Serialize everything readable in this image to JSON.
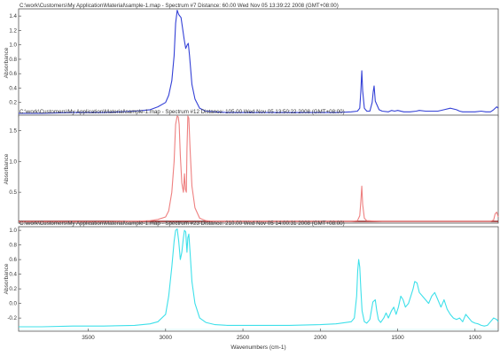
{
  "chart_data": [
    {
      "type": "line",
      "title": "C:\\work\\Customers\\My Application\\Material\\sample-1.map - Spectrum #7   Distance: 60.00   Wed Nov 05 13:39:22 2008 (GMT+08:00)",
      "ylabel": "Absorbance",
      "ylim": [
        0.0,
        1.5
      ],
      "yticks": [
        0.2,
        0.4,
        0.6,
        0.8,
        1.0,
        1.2,
        1.4
      ],
      "yticklabels": [
        "0.2",
        "0.4",
        "0.6",
        "0.8",
        "1.0",
        "1.2",
        "1.4"
      ],
      "color": "#3340d6",
      "baseline_color": "#3340d6",
      "x": [
        3950,
        3800,
        3600,
        3400,
        3200,
        3100,
        3050,
        3000,
        2980,
        2960,
        2945,
        2935,
        2925,
        2915,
        2900,
        2880,
        2870,
        2860,
        2853,
        2845,
        2830,
        2810,
        2780,
        2740,
        2680,
        2600,
        2400,
        2200,
        2000,
        1900,
        1800,
        1760,
        1745,
        1738,
        1732,
        1726,
        1715,
        1700,
        1680,
        1665,
        1658,
        1652,
        1645,
        1620,
        1600,
        1560,
        1540,
        1520,
        1500,
        1460,
        1420,
        1380,
        1360,
        1320,
        1280,
        1240,
        1200,
        1160,
        1120,
        1100,
        1080,
        1060,
        1040,
        1000,
        960,
        930,
        900,
        880,
        860,
        850
      ],
      "y": [
        0.05,
        0.05,
        0.06,
        0.06,
        0.08,
        0.1,
        0.14,
        0.2,
        0.3,
        0.5,
        0.85,
        1.3,
        1.48,
        1.42,
        1.38,
        1.08,
        0.95,
        1.0,
        1.02,
        0.85,
        0.45,
        0.25,
        0.12,
        0.08,
        0.07,
        0.06,
        0.06,
        0.06,
        0.06,
        0.06,
        0.07,
        0.08,
        0.12,
        0.35,
        0.64,
        0.36,
        0.12,
        0.08,
        0.08,
        0.2,
        0.35,
        0.43,
        0.22,
        0.1,
        0.08,
        0.07,
        0.09,
        0.08,
        0.09,
        0.07,
        0.07,
        0.08,
        0.09,
        0.08,
        0.08,
        0.08,
        0.1,
        0.12,
        0.1,
        0.08,
        0.07,
        0.07,
        0.07,
        0.07,
        0.08,
        0.07,
        0.07,
        0.1,
        0.14,
        0.12
      ]
    },
    {
      "type": "line",
      "title": "C:\\work\\Customers\\My Application\\Material\\sample-1.map - Spectrum #12   Distance: 105.00   Wed Nov 05 13:50:22 2008 (GMT+08:00)",
      "ylabel": "Absorbance",
      "ylim": [
        0.0,
        1.75
      ],
      "yticks": [
        0.5,
        1.0,
        1.5
      ],
      "yticklabels": [
        "0.5",
        "1.0",
        "1.5"
      ],
      "color": "#ee8080",
      "baseline_color": "#8a1010",
      "x": [
        3950,
        3800,
        3600,
        3400,
        3200,
        3100,
        3050,
        3000,
        2980,
        2960,
        2945,
        2935,
        2925,
        2918,
        2912,
        2905,
        2895,
        2885,
        2878,
        2872,
        2866,
        2862,
        2856,
        2850,
        2842,
        2830,
        2810,
        2780,
        2740,
        2680,
        2600,
        2400,
        2200,
        2000,
        1900,
        1800,
        1760,
        1745,
        1738,
        1732,
        1726,
        1715,
        1700,
        1600,
        1500,
        1400,
        1300,
        1200,
        1100,
        1000,
        950,
        900,
        880,
        870,
        860,
        850
      ],
      "y": [
        0.02,
        0.02,
        0.02,
        0.02,
        0.03,
        0.04,
        0.06,
        0.1,
        0.2,
        0.5,
        1.0,
        1.6,
        1.75,
        1.72,
        1.6,
        1.1,
        0.65,
        0.5,
        0.8,
        0.55,
        0.5,
        1.2,
        1.75,
        1.7,
        1.2,
        0.6,
        0.25,
        0.08,
        0.04,
        0.03,
        0.03,
        0.03,
        0.03,
        0.03,
        0.03,
        0.03,
        0.04,
        0.12,
        0.35,
        0.6,
        0.3,
        0.08,
        0.04,
        0.03,
        0.03,
        0.03,
        0.03,
        0.03,
        0.03,
        0.03,
        0.03,
        0.03,
        0.05,
        0.15,
        0.18,
        0.1
      ]
    },
    {
      "type": "line",
      "title": "C:\\work\\Customers\\My Application\\Material\\sample-1.map - Spectrum #23   Distance: 210.00   Wed Nov 05 14:00:31 2008 (GMT+08:00)",
      "ylabel": "Absorbance",
      "xlabel": "Wavenumbers (cm-1)",
      "ylim": [
        -0.38,
        1.05
      ],
      "yticks": [
        -0.2,
        0.0,
        0.2,
        0.4,
        0.6,
        0.8,
        1.0
      ],
      "yticklabels": [
        "-0.2",
        "0.0",
        "0.2",
        "0.4",
        "0.6",
        "0.8",
        "1.0"
      ],
      "xlim": [
        3950,
        850
      ],
      "xticks": [
        3500,
        3000,
        2500,
        2000,
        1500,
        1000
      ],
      "xticklabels": [
        "3500",
        "3000",
        "2500",
        "2000",
        "1500",
        "1000"
      ],
      "color": "#3ee0ea",
      "baseline_color": "#3ee0ea",
      "x": [
        3950,
        3800,
        3600,
        3400,
        3200,
        3100,
        3050,
        3000,
        2980,
        2960,
        2945,
        2935,
        2925,
        2915,
        2905,
        2895,
        2885,
        2878,
        2870,
        2862,
        2856,
        2850,
        2842,
        2830,
        2810,
        2780,
        2740,
        2680,
        2600,
        2400,
        2200,
        2000,
        1900,
        1800,
        1780,
        1765,
        1758,
        1752,
        1745,
        1738,
        1730,
        1715,
        1700,
        1680,
        1660,
        1645,
        1635,
        1625,
        1610,
        1590,
        1575,
        1560,
        1540,
        1525,
        1510,
        1495,
        1480,
        1465,
        1450,
        1430,
        1415,
        1400,
        1390,
        1375,
        1360,
        1340,
        1320,
        1300,
        1280,
        1260,
        1240,
        1220,
        1200,
        1180,
        1160,
        1140,
        1120,
        1100,
        1080,
        1060,
        1040,
        1020,
        1000,
        980,
        960,
        940,
        920,
        900,
        880,
        860,
        850
      ],
      "y": [
        -0.32,
        -0.32,
        -0.31,
        -0.31,
        -0.3,
        -0.28,
        -0.25,
        -0.15,
        0.1,
        0.5,
        0.85,
        1.0,
        1.02,
        0.85,
        0.6,
        0.7,
        0.9,
        1.0,
        0.98,
        0.7,
        0.9,
        0.95,
        0.7,
        0.3,
        0.0,
        -0.2,
        -0.26,
        -0.29,
        -0.3,
        -0.3,
        -0.3,
        -0.29,
        -0.28,
        -0.25,
        -0.2,
        0.1,
        0.45,
        0.6,
        0.5,
        0.2,
        -0.1,
        -0.25,
        -0.27,
        -0.22,
        0.02,
        0.05,
        -0.1,
        -0.22,
        -0.26,
        -0.2,
        -0.13,
        -0.2,
        -0.1,
        -0.05,
        -0.15,
        -0.05,
        0.1,
        0.05,
        -0.05,
        0.0,
        0.1,
        0.2,
        0.3,
        0.28,
        0.15,
        0.1,
        0.05,
        0.0,
        0.1,
        0.15,
        0.05,
        -0.05,
        0.05,
        -0.08,
        -0.15,
        -0.2,
        -0.22,
        -0.2,
        -0.25,
        -0.15,
        -0.2,
        -0.25,
        -0.27,
        -0.28,
        -0.3,
        -0.31,
        -0.3,
        -0.25,
        -0.2,
        -0.22,
        -0.25
      ]
    }
  ]
}
